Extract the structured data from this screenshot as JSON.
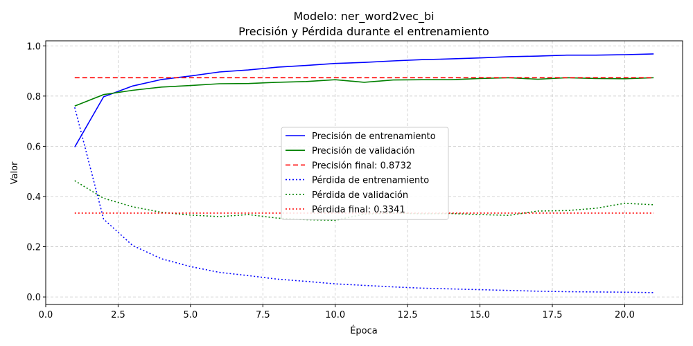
{
  "chart_data": {
    "type": "line",
    "title": "Modelo: ner_word2vec_bi",
    "subtitle": "Precisión y Pérdida durante el entrenamiento",
    "xlabel": "Época",
    "ylabel": "Valor",
    "xlim": [
      0,
      22
    ],
    "ylim": [
      -0.03,
      1.02
    ],
    "xticks": [
      "0.0",
      "2.5",
      "5.0",
      "7.5",
      "10.0",
      "12.5",
      "15.0",
      "17.5",
      "20.0"
    ],
    "xtick_values": [
      0,
      2.5,
      5,
      7.5,
      10,
      12.5,
      15,
      17.5,
      20
    ],
    "yticks": [
      "0.0",
      "0.2",
      "0.4",
      "0.6",
      "0.8",
      "1.0"
    ],
    "ytick_values": [
      0,
      0.2,
      0.4,
      0.6,
      0.8,
      1.0
    ],
    "grid": true,
    "legend_position": "center",
    "x": [
      1,
      2,
      3,
      4,
      5,
      6,
      7,
      8,
      9,
      10,
      11,
      12,
      13,
      14,
      15,
      16,
      17,
      18,
      19,
      20,
      21
    ],
    "series": [
      {
        "name": "Precisión de entrenamiento",
        "color": "#0000ff",
        "style": "solid",
        "values": [
          0.597,
          0.797,
          0.84,
          0.866,
          0.88,
          0.896,
          0.904,
          0.915,
          0.922,
          0.93,
          0.934,
          0.94,
          0.945,
          0.948,
          0.952,
          0.957,
          0.959,
          0.963,
          0.963,
          0.965,
          0.968
        ]
      },
      {
        "name": "Precisión de validación",
        "color": "#008000",
        "style": "solid",
        "values": [
          0.76,
          0.806,
          0.823,
          0.836,
          0.842,
          0.849,
          0.85,
          0.855,
          0.858,
          0.865,
          0.855,
          0.864,
          0.865,
          0.865,
          0.87,
          0.873,
          0.867,
          0.873,
          0.87,
          0.869,
          0.873
        ]
      },
      {
        "name": "Precisión final: 0.8732",
        "color": "#ff0000",
        "style": "dashed",
        "values": [
          0.8732,
          0.8732,
          0.8732,
          0.8732,
          0.8732,
          0.8732,
          0.8732,
          0.8732,
          0.8732,
          0.8732,
          0.8732,
          0.8732,
          0.8732,
          0.8732,
          0.8732,
          0.8732,
          0.8732,
          0.8732,
          0.8732,
          0.8732,
          0.8732
        ]
      },
      {
        "name": "Pérdida de entrenamiento",
        "color": "#0000ff",
        "style": "dotted",
        "values": [
          0.755,
          0.31,
          0.205,
          0.152,
          0.121,
          0.098,
          0.085,
          0.071,
          0.062,
          0.052,
          0.046,
          0.04,
          0.035,
          0.032,
          0.029,
          0.026,
          0.023,
          0.021,
          0.02,
          0.019,
          0.017
        ]
      },
      {
        "name": "Pérdida de validación",
        "color": "#008000",
        "style": "dotted",
        "values": [
          0.463,
          0.393,
          0.359,
          0.337,
          0.326,
          0.32,
          0.328,
          0.314,
          0.308,
          0.305,
          0.33,
          0.334,
          0.331,
          0.332,
          0.328,
          0.325,
          0.342,
          0.344,
          0.353,
          0.373,
          0.367
        ]
      },
      {
        "name": "Pérdida final: 0.3341",
        "color": "#ff0000",
        "style": "dotted",
        "values": [
          0.3341,
          0.3341,
          0.3341,
          0.3341,
          0.3341,
          0.3341,
          0.3341,
          0.3341,
          0.3341,
          0.3341,
          0.3341,
          0.3341,
          0.3341,
          0.3341,
          0.3341,
          0.3341,
          0.3341,
          0.3341,
          0.3341,
          0.3341,
          0.3341
        ]
      }
    ]
  }
}
